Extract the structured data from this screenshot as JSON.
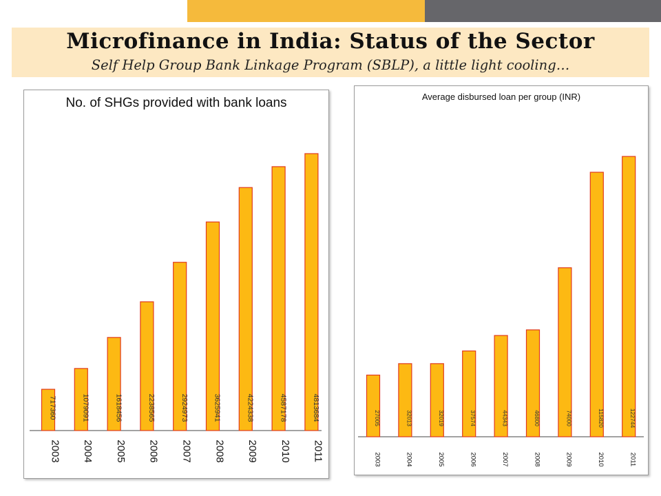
{
  "slide": {
    "title": "Microfinance in India: Status of the Sector",
    "subtitle": "Self Help Group Bank Linkage Program (SBLP), a little light cooling…"
  },
  "colors": {
    "bar_fill": "#fdb913",
    "bar_stroke": "#e03a1e",
    "accent_yellow": "#f5ba3c",
    "accent_grey": "#66666a",
    "title_band": "#fde8c2"
  },
  "chart_data": [
    {
      "type": "bar",
      "title": "No. of SHGs provided with bank loans",
      "categories": [
        "2003",
        "2004",
        "2005",
        "2006",
        "2007",
        "2008",
        "2009",
        "2010",
        "2011"
      ],
      "values": [
        717360,
        1079091,
        1618456,
        2238565,
        2924973,
        3625941,
        4224338,
        4587178,
        4813684
      ],
      "value_labels": [
        "717360",
        "1079091",
        "1618456",
        "2238565",
        "2924973",
        "3625941",
        "4224338",
        "4587178",
        "4813684"
      ],
      "ylim": [
        0,
        5700000
      ],
      "grid": false,
      "legend": "none"
    },
    {
      "type": "bar",
      "title": "Average disbursed loan per group (INR)",
      "categories": [
        "2003",
        "2004",
        "2005",
        "2006",
        "2007",
        "2008",
        "2009",
        "2010",
        "2011"
      ],
      "values": [
        27005,
        32013,
        32019,
        37574,
        44343,
        46800,
        74000,
        115820,
        122744
      ],
      "value_labels": [
        "27005",
        "32013",
        "32019",
        "37574",
        "44343",
        "46800",
        "74000",
        "115820",
        "122744"
      ],
      "ylim": [
        0,
        146000
      ],
      "grid": false,
      "legend": "none"
    }
  ]
}
